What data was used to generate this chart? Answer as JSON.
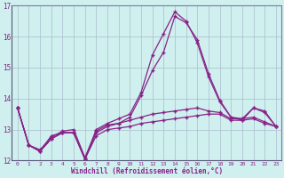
{
  "title": "",
  "xlabel": "Windchill (Refroidissement éolien,°C)",
  "bg_color": "#cff0ee",
  "line_color": "#882288",
  "grid_color": "#aabbcc",
  "xlim": [
    -0.5,
    23.5
  ],
  "ylim": [
    12,
    17
  ],
  "yticks": [
    12,
    13,
    14,
    15,
    16,
    17
  ],
  "xticks": [
    0,
    1,
    2,
    3,
    4,
    5,
    6,
    7,
    8,
    9,
    10,
    11,
    12,
    13,
    14,
    15,
    16,
    17,
    18,
    19,
    20,
    21,
    22,
    23
  ],
  "series": [
    [
      13.7,
      12.5,
      12.3,
      12.7,
      12.9,
      12.9,
      12.05,
      12.8,
      13.0,
      13.05,
      13.1,
      13.2,
      13.25,
      13.3,
      13.35,
      13.4,
      13.45,
      13.5,
      13.5,
      13.3,
      13.3,
      13.35,
      13.2,
      13.1
    ],
    [
      13.7,
      12.5,
      12.35,
      12.75,
      12.95,
      13.0,
      12.1,
      12.95,
      13.15,
      13.2,
      13.3,
      13.4,
      13.5,
      13.55,
      13.6,
      13.65,
      13.7,
      13.6,
      13.55,
      13.35,
      13.35,
      13.4,
      13.25,
      13.1
    ],
    [
      13.7,
      12.5,
      12.3,
      12.7,
      12.9,
      12.9,
      12.05,
      12.9,
      13.1,
      13.2,
      13.4,
      14.1,
      14.9,
      15.5,
      16.65,
      16.45,
      15.9,
      14.8,
      13.95,
      13.4,
      13.35,
      13.7,
      13.55,
      13.1
    ],
    [
      13.7,
      12.5,
      12.3,
      12.8,
      12.9,
      12.9,
      12.05,
      13.0,
      13.2,
      13.35,
      13.5,
      14.2,
      15.4,
      16.1,
      16.8,
      16.5,
      15.8,
      14.7,
      13.9,
      13.4,
      13.3,
      13.7,
      13.6,
      13.1
    ]
  ]
}
